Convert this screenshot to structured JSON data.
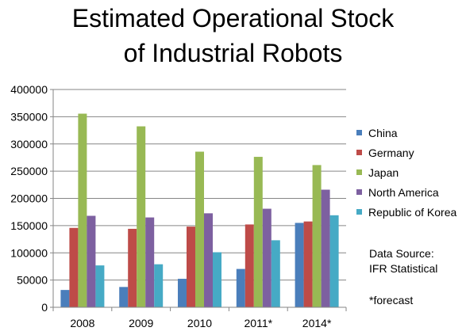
{
  "chart_data": {
    "type": "bar",
    "title_lines": [
      "Estimated Operational Stock",
      "of Industrial Robots"
    ],
    "categories": [
      "2008",
      "2009",
      "2010",
      "2011*",
      "2014*"
    ],
    "series": [
      {
        "name": "China",
        "color": "#4a7ebb",
        "values": [
          31800,
          37300,
          52300,
          70400,
          155000
        ]
      },
      {
        "name": "Germany",
        "color": "#be4b48",
        "values": [
          145800,
          144100,
          148200,
          152100,
          157600
        ]
      },
      {
        "name": "Japan",
        "color": "#98b954",
        "values": [
          355600,
          332300,
          285800,
          276300,
          261200
        ]
      },
      {
        "name": "North America",
        "color": "#7d60a0",
        "values": [
          168000,
          165000,
          172600,
          181000,
          216000
        ]
      },
      {
        "name": "Republic of Korea",
        "color": "#46aac5",
        "values": [
          76900,
          79000,
          101100,
          123100,
          169000
        ]
      }
    ],
    "ylim": [
      0,
      400000
    ],
    "ytick_step": 50000,
    "yticks": [
      "0",
      "50000",
      "100000",
      "150000",
      "200000",
      "250000",
      "300000",
      "350000",
      "400000"
    ],
    "xlabel": "",
    "ylabel": "",
    "grid": true,
    "legend_position": "right",
    "annotations": {
      "source_lines": [
        "Data Source:",
        "IFR Statistical"
      ],
      "forecast": "*forecast"
    }
  }
}
